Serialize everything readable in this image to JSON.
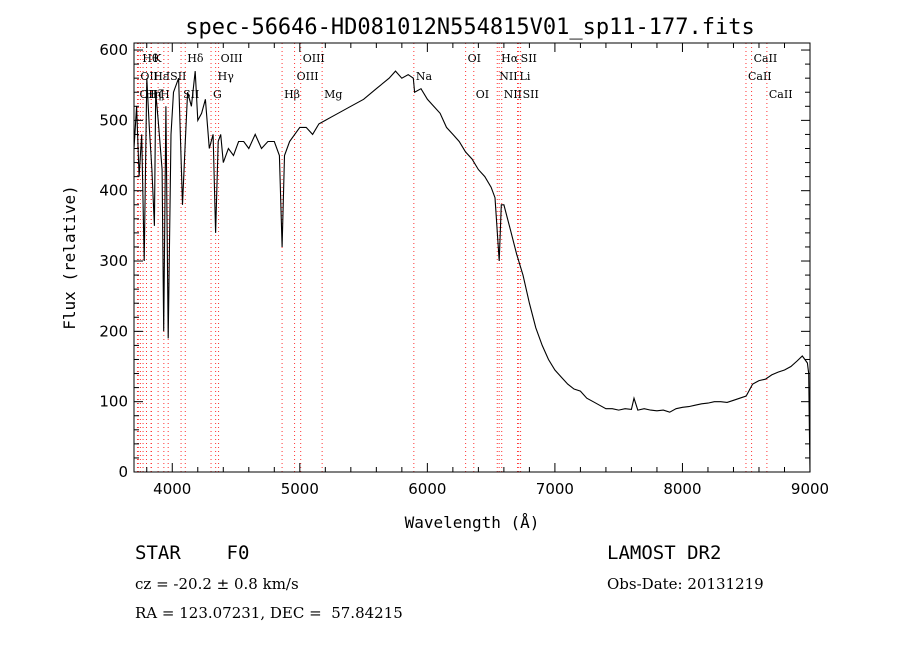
{
  "chart_data": {
    "type": "line",
    "title": "spec-56646-HD081012N554815V01_sp11-177.fits",
    "xlabel": "Wavelength (Å)",
    "ylabel": "Flux (relative)",
    "xlim": [
      3700,
      9000
    ],
    "ylim": [
      0,
      610
    ],
    "xticks": [
      4000,
      5000,
      6000,
      7000,
      8000,
      9000
    ],
    "yticks": [
      0,
      100,
      200,
      300,
      400,
      500,
      600
    ],
    "grid": false,
    "line_color": "#000000",
    "marker_color": "#ff0000",
    "series": [
      {
        "x": [
          3700,
          3720,
          3740,
          3760,
          3780,
          3800,
          3820,
          3840,
          3860,
          3870,
          3890,
          3920,
          3933,
          3950,
          3968,
          3990,
          4010,
          4050,
          4080,
          4102,
          4120,
          4150,
          4180,
          4200,
          4230,
          4260,
          4290,
          4320,
          4340,
          4360,
          4380,
          4400,
          4440,
          4480,
          4520,
          4560,
          4600,
          4650,
          4700,
          4750,
          4800,
          4840,
          4861,
          4880,
          4920,
          4960,
          5000,
          5050,
          5100,
          5150,
          5200,
          5250,
          5300,
          5400,
          5500,
          5600,
          5700,
          5750,
          5800,
          5850,
          5890,
          5900,
          5950,
          6000,
          6050,
          6100,
          6150,
          6200,
          6250,
          6300,
          6350,
          6400,
          6450,
          6500,
          6530,
          6563,
          6580,
          6600,
          6650,
          6700,
          6750,
          6800,
          6850,
          6900,
          6950,
          7000,
          7050,
          7100,
          7150,
          7200,
          7250,
          7300,
          7350,
          7400,
          7450,
          7500,
          7550,
          7600,
          7620,
          7650,
          7700,
          7750,
          7800,
          7850,
          7900,
          7950,
          8000,
          8050,
          8100,
          8150,
          8200,
          8250,
          8300,
          8350,
          8400,
          8450,
          8500,
          8550,
          8600,
          8650,
          8700,
          8750,
          8800,
          8850,
          8900,
          8940,
          8960,
          8980,
          8990,
          8995,
          9000
        ],
        "y": [
          460,
          520,
          420,
          480,
          300,
          560,
          490,
          430,
          350,
          540,
          500,
          430,
          200,
          520,
          190,
          480,
          540,
          560,
          380,
          470,
          540,
          520,
          570,
          500,
          510,
          530,
          460,
          480,
          340,
          470,
          480,
          440,
          460,
          450,
          470,
          470,
          460,
          480,
          460,
          470,
          470,
          450,
          320,
          450,
          470,
          480,
          490,
          490,
          480,
          495,
          500,
          505,
          510,
          520,
          530,
          545,
          560,
          570,
          560,
          565,
          560,
          540,
          545,
          530,
          520,
          510,
          490,
          480,
          470,
          455,
          445,
          430,
          420,
          405,
          390,
          300,
          380,
          380,
          345,
          310,
          280,
          240,
          205,
          180,
          160,
          145,
          135,
          125,
          118,
          115,
          105,
          100,
          95,
          90,
          90,
          88,
          90,
          89,
          105,
          88,
          90,
          88,
          87,
          88,
          85,
          90,
          92,
          93,
          95,
          97,
          98,
          100,
          100,
          99,
          102,
          105,
          108,
          125,
          130,
          132,
          138,
          142,
          145,
          150,
          158,
          165,
          160,
          155,
          140,
          60,
          0
        ]
      }
    ],
    "lines": [
      {
        "x": 3727,
        "label": "OII",
        "row": 2
      },
      {
        "x": 3734,
        "label": "OII",
        "row": 1
      },
      {
        "x": 3750,
        "label": "Hθ",
        "row": 0
      },
      {
        "x": 3771,
        "label": "Hη",
        "row": 2
      },
      {
        "x": 3798,
        "label": "Hζ",
        "row": 2
      },
      {
        "x": 3835,
        "label": "K",
        "row": 0
      },
      {
        "x": 3835,
        "label": "Hε",
        "row": 1
      },
      {
        "x": 3889,
        "label": "H",
        "row": 2
      },
      {
        "x": 3934,
        "label": "I",
        "row": 1
      },
      {
        "x": 3968,
        "label": "SII",
        "row": 1
      },
      {
        "x": 4069,
        "label": "SII",
        "row": 2
      },
      {
        "x": 4102,
        "label": "Hδ",
        "row": 0
      },
      {
        "x": 4304,
        "label": "G",
        "row": 2
      },
      {
        "x": 4340,
        "label": "Hγ",
        "row": 1
      },
      {
        "x": 4363,
        "label": "OIII",
        "row": 0
      },
      {
        "x": 4861,
        "label": "Hβ",
        "row": 2
      },
      {
        "x": 4959,
        "label": "OIII",
        "row": 1
      },
      {
        "x": 5007,
        "label": "OIII",
        "row": 0
      },
      {
        "x": 5175,
        "label": "Mg",
        "row": 2
      },
      {
        "x": 5894,
        "label": "Na",
        "row": 1
      },
      {
        "x": 6300,
        "label": "OI",
        "row": 0
      },
      {
        "x": 6364,
        "label": "OI",
        "row": 2
      },
      {
        "x": 6548,
        "label": "NII",
        "row": 1
      },
      {
        "x": 6563,
        "label": "Hα",
        "row": 0
      },
      {
        "x": 6583,
        "label": "NII",
        "row": 2
      },
      {
        "x": 6707,
        "label": "Li",
        "row": 1
      },
      {
        "x": 6716,
        "label": "SII",
        "row": 0
      },
      {
        "x": 6731,
        "label": "SII",
        "row": 2
      },
      {
        "x": 8498,
        "label": "CaII",
        "row": 1
      },
      {
        "x": 8542,
        "label": "CaII",
        "row": 0
      },
      {
        "x": 8662,
        "label": "CaII",
        "row": 2
      }
    ]
  },
  "info": {
    "class": "STAR    F0",
    "survey": "LAMOST DR2",
    "cz": "cz = -20.2 ± 0.8 km/s",
    "obs_date": "Obs-Date: 20131219",
    "radec": "RA = 123.07231, DEC =  57.84215"
  }
}
